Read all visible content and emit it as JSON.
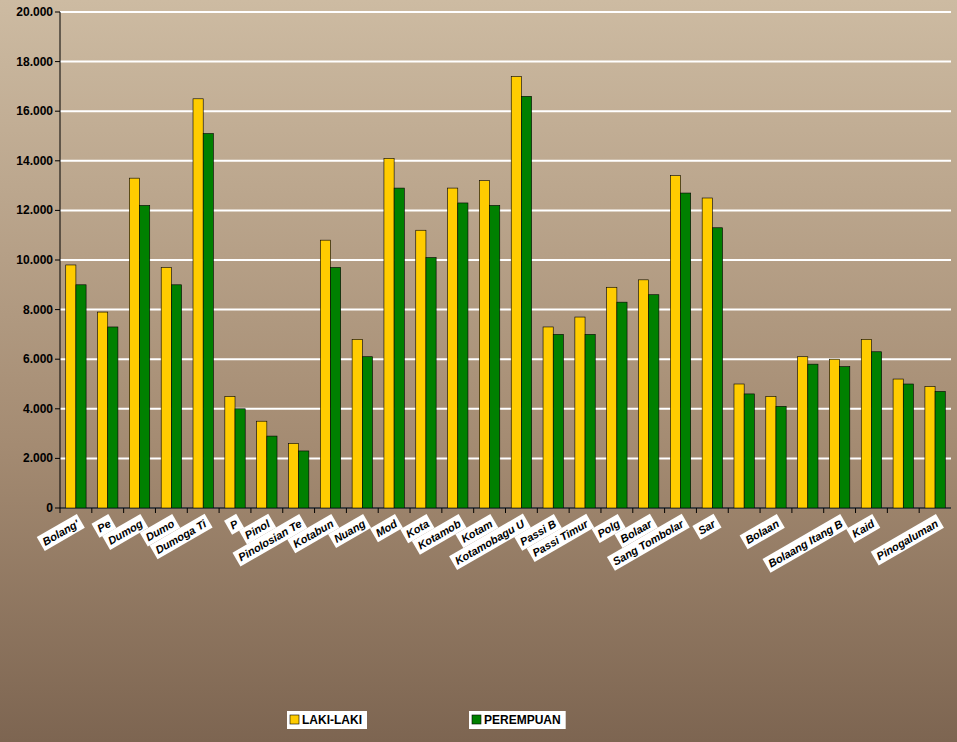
{
  "chart_data": {
    "type": "bar",
    "categories": [
      "Bolang'",
      "Pe",
      "Dumog",
      "Dumo",
      "Dumoga Ti",
      "P",
      "Pinol",
      "Pinolosian Te",
      "Kotabun",
      "Nuang",
      "Mod",
      "Kota",
      "Kotamob",
      "Kotam",
      "Kotamobagu U",
      "Passi B",
      "Passi Timur",
      "Polg",
      "Bolaar",
      "Sang Tombolar",
      "Sar",
      null,
      "Bolaan",
      null,
      "Bolaang Itang B",
      "Kaid",
      null,
      "Pinogaluman"
    ],
    "series": [
      {
        "name": "LAKI-LAKI",
        "color": "#ffcc00",
        "values": [
          9800,
          7900,
          13300,
          9700,
          16500,
          4500,
          3500,
          2600,
          10800,
          6800,
          14100,
          11200,
          12900,
          13200,
          17400,
          7300,
          7700,
          8900,
          9200,
          13400,
          12500,
          5000,
          4500,
          6100,
          6000,
          6800,
          5200,
          4900
        ]
      },
      {
        "name": "PEREMPUAN",
        "color": "#008000",
        "values": [
          9000,
          7300,
          12200,
          9000,
          15100,
          4000,
          2900,
          2300,
          9700,
          6100,
          12900,
          10100,
          12300,
          12200,
          16600,
          7000,
          7000,
          8300,
          8600,
          12700,
          11300,
          4600,
          4100,
          5800,
          5700,
          6300,
          5000,
          4700
        ]
      }
    ],
    "ylim": [
      0,
      20000
    ],
    "yticks": [
      0,
      {
        "value": 2000,
        "label": "2.000"
      },
      {
        "value": 4000,
        "label": "4.000"
      },
      {
        "value": 6000,
        "label": "6.000"
      },
      {
        "value": 8000,
        "label": "8.000"
      },
      {
        "value": 10000,
        "label": "10.000"
      },
      {
        "value": 12000,
        "label": "12.000"
      },
      {
        "value": 14000,
        "label": "14.000"
      },
      {
        "value": 16000,
        "label": "16.000"
      },
      {
        "value": 18000,
        "label": "18.000"
      },
      {
        "value": 20000,
        "label": "20.000"
      }
    ],
    "grid": true,
    "legend": "bottom"
  }
}
